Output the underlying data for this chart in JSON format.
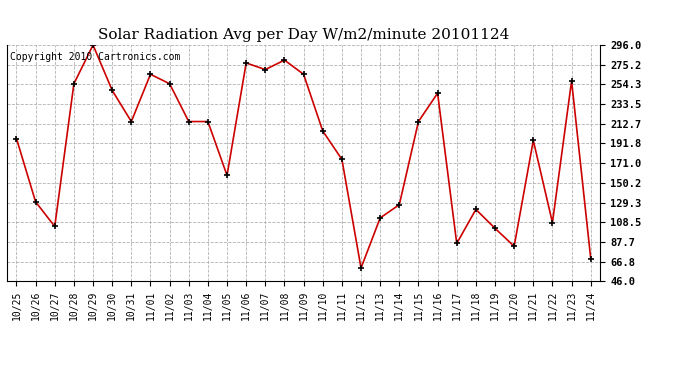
{
  "title": "Solar Radiation Avg per Day W/m2/minute 20101124",
  "copyright": "Copyright 2010 Cartronics.com",
  "labels": [
    "10/25",
    "10/26",
    "10/27",
    "10/28",
    "10/29",
    "10/30",
    "10/31",
    "11/01",
    "11/02",
    "11/03",
    "11/04",
    "11/05",
    "11/06",
    "11/07",
    "11/08",
    "11/09",
    "11/10",
    "11/11",
    "11/12",
    "11/13",
    "11/14",
    "11/15",
    "11/16",
    "11/17",
    "11/18",
    "11/19",
    "11/20",
    "11/21",
    "11/22",
    "11/23",
    "11/24"
  ],
  "values": [
    197,
    130,
    104,
    255,
    296,
    248,
    215,
    265,
    255,
    215,
    215,
    158,
    277,
    270,
    280,
    265,
    205,
    175,
    60,
    113,
    127,
    215,
    245,
    86,
    122,
    102,
    83,
    195,
    108,
    258,
    70
  ],
  "line_color": "#cc0000",
  "marker_color": "#000000",
  "bg_color": "#ffffff",
  "grid_color": "#aaaaaa",
  "ymin": 46.0,
  "ymax": 296.0,
  "yticks": [
    46.0,
    66.8,
    87.7,
    108.5,
    129.3,
    150.2,
    171.0,
    191.8,
    212.7,
    233.5,
    254.3,
    275.2,
    296.0
  ],
  "title_fontsize": 11,
  "copyright_fontsize": 7
}
